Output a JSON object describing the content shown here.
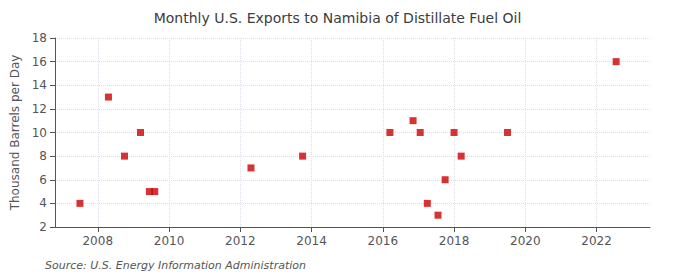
{
  "chart_data": {
    "type": "scatter",
    "title": "Monthly U.S. Exports to Namibia of Distillate Fuel Oil",
    "ylabel": "Thousand Barrels per Day",
    "annotation": "Source: U.S. Energy Information Administration",
    "x": [
      2007.5,
      2008.3,
      2008.75,
      2009.2,
      2009.45,
      2009.6,
      2012.3,
      2013.75,
      2016.2,
      2016.85,
      2017.05,
      2017.25,
      2017.55,
      2017.75,
      2018.0,
      2018.2,
      2019.5,
      2022.55
    ],
    "values": [
      4,
      13,
      8,
      10,
      5,
      5,
      7,
      8,
      10,
      11,
      10,
      4,
      3,
      6,
      10,
      8,
      10,
      16
    ],
    "color": "#cc0000",
    "marker": "square",
    "xlim": [
      2006.8,
      2023.5
    ],
    "ylim": [
      2,
      18
    ],
    "xticks": [
      2008,
      2010,
      2012,
      2014,
      2016,
      2018,
      2020,
      2022
    ],
    "yticks": [
      2,
      4,
      6,
      8,
      10,
      12,
      14,
      16,
      18
    ],
    "grid": true
  }
}
